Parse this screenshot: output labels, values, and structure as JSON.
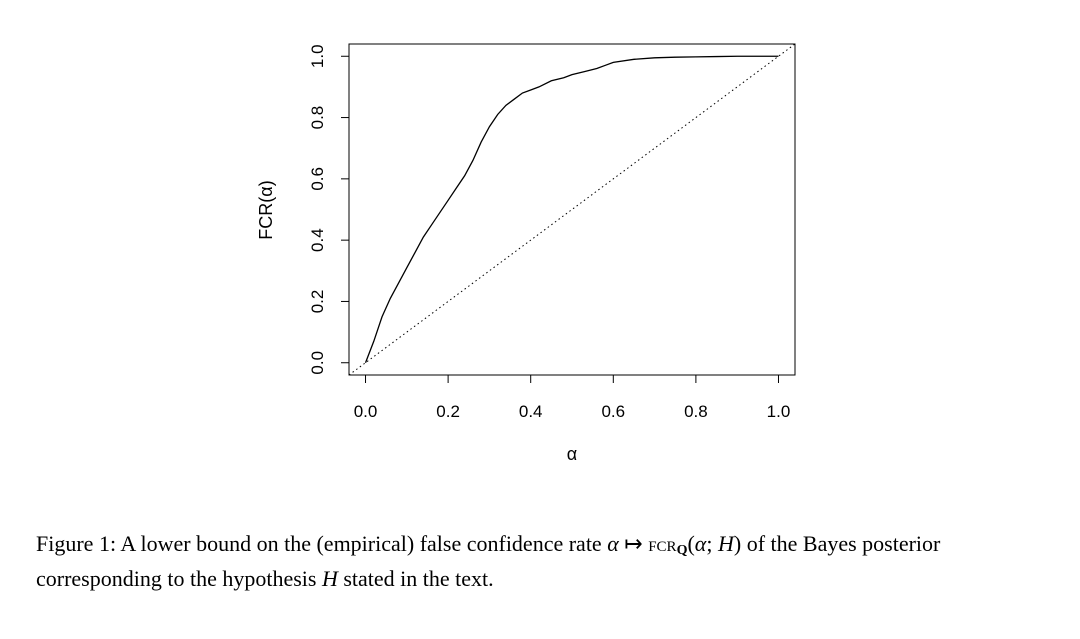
{
  "chart_data": {
    "type": "line",
    "xlabel": "α",
    "ylabel": "FCR(α)",
    "xlim": [
      -0.04,
      1.04
    ],
    "ylim": [
      -0.04,
      1.04
    ],
    "xticks": [
      0.0,
      0.2,
      0.4,
      0.6,
      0.8,
      1.0
    ],
    "yticks": [
      0.0,
      0.2,
      0.4,
      0.6,
      0.8,
      1.0
    ],
    "xtick_labels": [
      "0.0",
      "0.2",
      "0.4",
      "0.6",
      "0.8",
      "1.0"
    ],
    "ytick_labels": [
      "0.0",
      "0.2",
      "0.4",
      "0.6",
      "0.8",
      "1.0"
    ],
    "grid": false,
    "legend": "none",
    "series": [
      {
        "style": "solid",
        "x": [
          0.0,
          0.02,
          0.04,
          0.06,
          0.08,
          0.1,
          0.12,
          0.14,
          0.16,
          0.18,
          0.2,
          0.22,
          0.24,
          0.26,
          0.28,
          0.3,
          0.32,
          0.34,
          0.36,
          0.38,
          0.4,
          0.42,
          0.45,
          0.48,
          0.5,
          0.53,
          0.56,
          0.58,
          0.6,
          0.65,
          0.7,
          0.75,
          0.8,
          0.85,
          0.9,
          0.95,
          1.0
        ],
        "y": [
          0.0,
          0.07,
          0.15,
          0.21,
          0.26,
          0.31,
          0.36,
          0.41,
          0.45,
          0.49,
          0.53,
          0.57,
          0.61,
          0.66,
          0.72,
          0.77,
          0.81,
          0.84,
          0.86,
          0.88,
          0.89,
          0.9,
          0.92,
          0.93,
          0.94,
          0.95,
          0.96,
          0.97,
          0.98,
          0.99,
          0.995,
          0.997,
          0.998,
          0.999,
          1.0,
          1.0,
          1.0
        ]
      },
      {
        "style": "dotted",
        "x": [
          -0.04,
          1.04
        ],
        "y": [
          -0.04,
          1.04
        ]
      }
    ]
  },
  "caption": {
    "prefix": "Figure 1: A lower bound on the (empirical) false confidence rate ",
    "alpha": "α",
    "mapsto": " ↦ ",
    "fcr": "fcr",
    "sub": "Q",
    "args_open": "(",
    "args_alpha": "α",
    "args_sep": "; ",
    "args_H": "H",
    "args_close": ")",
    "suffix": " of the Bayes posterior corresponding to the hypothesis ",
    "hyp": "H",
    "end": " stated in the text."
  }
}
